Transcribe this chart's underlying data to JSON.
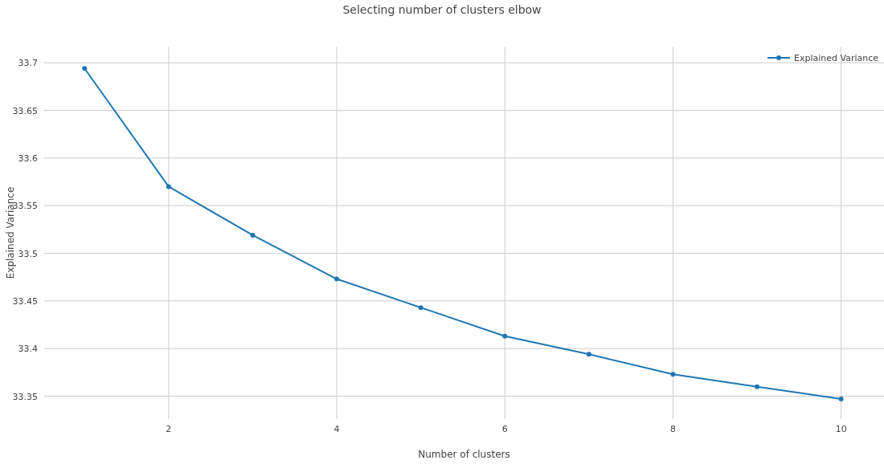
{
  "chart_data": {
    "type": "line",
    "title": "Selecting number of clusters elbow",
    "xlabel": "Number of clusters",
    "ylabel": "Explained Variance",
    "x": [
      1,
      2,
      3,
      4,
      5,
      6,
      7,
      8,
      9,
      10
    ],
    "series": [
      {
        "name": "Explained Variance",
        "color": "#1f77b4",
        "values": [
          33.694,
          33.57,
          33.519,
          33.473,
          33.443,
          33.413,
          33.394,
          33.373,
          33.36,
          33.347
        ]
      }
    ],
    "xlim": [
      0.52,
      10.51
    ],
    "xticks": [
      2,
      4,
      6,
      8,
      10
    ],
    "ylim": [
      33.326,
      33.717
    ],
    "yticks": [
      33.35,
      33.4,
      33.45,
      33.5,
      33.55,
      33.6,
      33.65,
      33.7
    ],
    "grid": true,
    "legend": "top right",
    "marker": "circle",
    "line_style": "solid"
  }
}
